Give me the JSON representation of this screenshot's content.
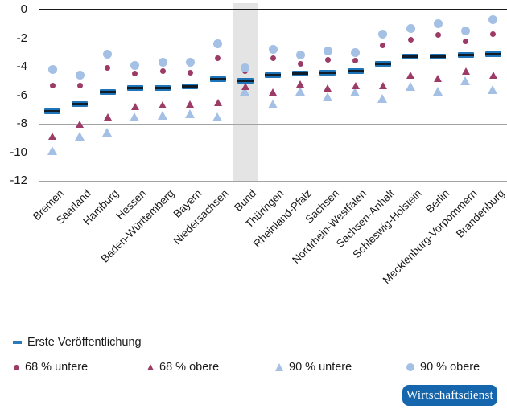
{
  "chart_data": {
    "type": "scatter",
    "title": "",
    "xlabel": "",
    "ylabel": "",
    "ylim": [
      -12,
      0
    ],
    "yticks": [
      0,
      -2,
      -4,
      -6,
      -8,
      -10,
      -12
    ],
    "grid": true,
    "legend_position": "bottom",
    "highlighted_category": "Bund",
    "categories": [
      "Bremen",
      "Saarland",
      "Hamburg",
      "Hessen",
      "Baden-Württemberg",
      "Bayern",
      "Niedersachsen",
      "Bund",
      "Thüringen",
      "Rheinland-Pfalz",
      "Sachsen",
      "Nordrhein-Westfalen",
      "Sachsen-Anhalt",
      "Schleswig-Holstein",
      "Berlin",
      "Mecklenburg-Vorpommern",
      "Brandenburg"
    ],
    "series": [
      {
        "name": "Erste Veröffentlichung",
        "marker": "dash",
        "color": "#1f74b8",
        "values": [
          -7.1,
          -6.6,
          -5.8,
          -5.5,
          -5.5,
          -5.4,
          -4.9,
          -5.0,
          -4.6,
          -4.5,
          -4.4,
          -4.3,
          -3.8,
          -3.3,
          -3.3,
          -3.2,
          -3.1
        ]
      },
      {
        "name": "68 % untere",
        "marker": "circle-small",
        "color": "#9d3b67",
        "values": [
          -5.3,
          -5.3,
          -4.1,
          -4.5,
          -4.3,
          -4.4,
          -3.4,
          -4.3,
          -3.4,
          -3.8,
          -3.5,
          -3.6,
          -2.5,
          -2.1,
          -1.8,
          -2.2,
          -1.7
        ]
      },
      {
        "name": "68 % obere",
        "marker": "triangle-small",
        "color": "#9d3b67",
        "values": [
          -8.9,
          -8.0,
          -7.5,
          -6.8,
          -6.7,
          -6.6,
          -6.5,
          -5.4,
          -5.8,
          -5.2,
          -5.5,
          -5.3,
          -5.3,
          -4.6,
          -4.8,
          -4.3,
          -4.6
        ]
      },
      {
        "name": "90 % untere",
        "marker": "triangle-large",
        "color": "#a4c0e4",
        "values": [
          -9.9,
          -8.9,
          -8.6,
          -7.5,
          -7.4,
          -7.3,
          -7.5,
          -5.7,
          -6.6,
          -5.7,
          -6.1,
          -5.8,
          -6.2,
          -5.4,
          -5.7,
          -5.0,
          -5.6
        ]
      },
      {
        "name": "90 % obere",
        "marker": "circle-large",
        "color": "#a4c0e4",
        "values": [
          -4.2,
          -4.6,
          -3.1,
          -3.9,
          -3.7,
          -3.7,
          -2.4,
          -4.1,
          -2.8,
          -3.2,
          -2.9,
          -3.0,
          -1.7,
          -1.3,
          -1.0,
          -1.5,
          -0.7
        ]
      }
    ]
  },
  "colors": {
    "grid": "#a3a3a3",
    "zero_line": "#1a1a1a",
    "highlight_band": "#e4e4e4",
    "dash_core": "#101c28",
    "legend_dash": "#2e79ba",
    "text": "#1a1a1a"
  },
  "badge": {
    "label": "Wirtschaftsdienst",
    "bg": "#1566ad",
    "text_color": "#ffffff"
  }
}
